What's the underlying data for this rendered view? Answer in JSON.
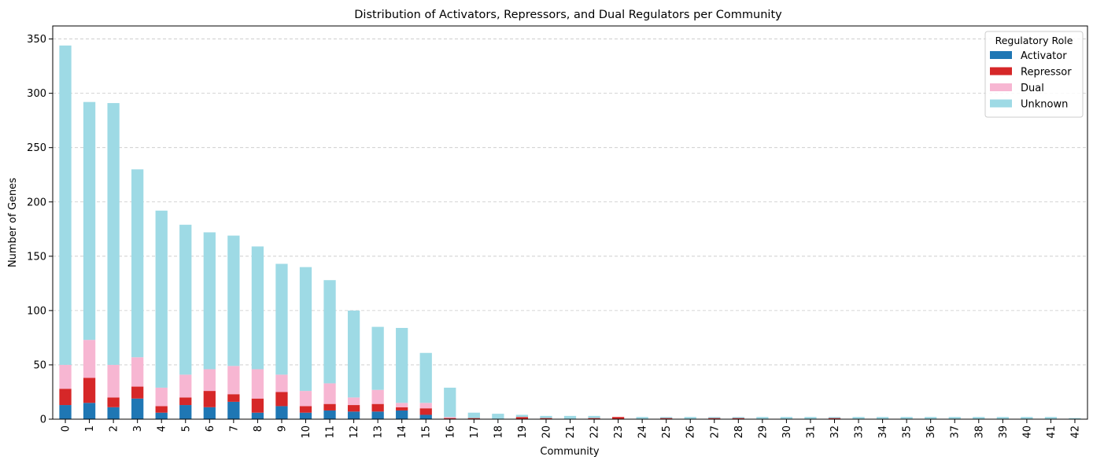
{
  "chart_data": {
    "type": "bar",
    "stacked": true,
    "title": "Distribution of Activators, Repressors, and Dual Regulators per Community",
    "xlabel": "Community",
    "ylabel": "Number of Genes",
    "ylim": [
      0,
      362
    ],
    "yticks": [
      0,
      50,
      100,
      150,
      200,
      250,
      300,
      350
    ],
    "grid": "y-dashed",
    "legend_title": "Regulatory Role",
    "legend_position": "top-right",
    "categories": [
      "0",
      "1",
      "2",
      "3",
      "4",
      "5",
      "6",
      "7",
      "8",
      "9",
      "10",
      "11",
      "12",
      "13",
      "14",
      "15",
      "16",
      "17",
      "18",
      "19",
      "20",
      "21",
      "22",
      "23",
      "24",
      "25",
      "26",
      "27",
      "28",
      "29",
      "30",
      "31",
      "32",
      "33",
      "34",
      "35",
      "36",
      "37",
      "38",
      "39",
      "40",
      "41",
      "42"
    ],
    "series": [
      {
        "name": "Activator",
        "color": "#1f77b4",
        "values": [
          13,
          15,
          11,
          19,
          6,
          13,
          11,
          16,
          6,
          12,
          6,
          8,
          7,
          7,
          8,
          4,
          0,
          0,
          0,
          0,
          0,
          0,
          0,
          0,
          0,
          0,
          0,
          0,
          0,
          0,
          0,
          0,
          0,
          0,
          0,
          0,
          0,
          0,
          0,
          0,
          0,
          0,
          0
        ]
      },
      {
        "name": "Repressor",
        "color": "#d62728",
        "values": [
          15,
          23,
          9,
          11,
          6,
          7,
          15,
          7,
          13,
          13,
          6,
          6,
          6,
          7,
          3,
          6,
          1,
          1,
          0,
          2,
          1,
          0,
          1,
          2,
          0,
          1,
          0,
          1,
          1,
          0,
          0,
          0,
          1,
          0,
          0,
          0,
          0,
          0,
          0,
          0,
          0,
          0,
          0
        ]
      },
      {
        "name": "Dual",
        "color": "#f7b6d2",
        "values": [
          22,
          35,
          30,
          27,
          17,
          21,
          20,
          26,
          27,
          16,
          14,
          19,
          7,
          13,
          4,
          5,
          1,
          0,
          0,
          0,
          0,
          0,
          0,
          0,
          0,
          0,
          0,
          0,
          0,
          0,
          0,
          0,
          0,
          0,
          0,
          0,
          0,
          0,
          0,
          0,
          0,
          0,
          0
        ]
      },
      {
        "name": "Unknown",
        "color": "#9edae5",
        "values": [
          294,
          219,
          241,
          173,
          163,
          138,
          126,
          120,
          113,
          102,
          114,
          95,
          80,
          58,
          69,
          46,
          27,
          5,
          5,
          2,
          2,
          3,
          2,
          0,
          2,
          1,
          2,
          1,
          1,
          2,
          2,
          2,
          1,
          2,
          2,
          2,
          2,
          2,
          2,
          2,
          2,
          2,
          1
        ]
      }
    ]
  }
}
